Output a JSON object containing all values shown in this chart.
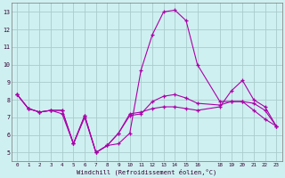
{
  "xlabel": "Windchill (Refroidissement éolien,°C)",
  "background_color": "#cff0f0",
  "grid_color": "#aacccc",
  "line_color": "#aa00aa",
  "xlim": [
    -0.5,
    23.5
  ],
  "ylim": [
    4.5,
    13.5
  ],
  "yticks": [
    5,
    6,
    7,
    8,
    9,
    10,
    11,
    12,
    13
  ],
  "xticks": [
    0,
    1,
    2,
    3,
    4,
    5,
    6,
    7,
    8,
    9,
    10,
    11,
    12,
    13,
    14,
    15,
    16,
    18,
    19,
    20,
    21,
    22,
    23
  ],
  "series1_x": [
    0,
    1,
    2,
    3,
    4,
    5,
    6,
    7,
    8,
    9,
    10,
    11,
    12,
    13,
    14,
    15,
    16,
    18,
    19,
    20,
    21,
    22,
    23
  ],
  "series1_y": [
    8.3,
    7.5,
    7.3,
    7.4,
    7.4,
    5.5,
    7.1,
    5.0,
    5.4,
    5.5,
    6.1,
    9.7,
    11.7,
    13.0,
    13.1,
    12.5,
    10.0,
    7.9,
    7.9,
    7.9,
    7.4,
    6.9,
    6.5
  ],
  "series2_x": [
    0,
    1,
    2,
    3,
    4,
    5,
    6,
    7,
    8,
    9,
    10,
    11,
    12,
    13,
    14,
    15,
    16,
    18,
    19,
    20,
    21,
    22,
    23
  ],
  "series2_y": [
    8.3,
    7.5,
    7.3,
    7.4,
    7.4,
    5.5,
    7.1,
    5.0,
    5.4,
    6.1,
    7.2,
    7.3,
    7.5,
    7.6,
    7.6,
    7.5,
    7.4,
    7.6,
    8.5,
    9.1,
    8.0,
    7.6,
    6.5
  ],
  "series3_x": [
    0,
    1,
    2,
    3,
    4,
    5,
    6,
    7,
    8,
    9,
    10,
    11,
    12,
    13,
    14,
    15,
    16,
    18,
    19,
    20,
    21,
    22,
    23
  ],
  "series3_y": [
    8.3,
    7.5,
    7.3,
    7.4,
    7.2,
    5.5,
    7.0,
    5.0,
    5.4,
    6.1,
    7.1,
    7.2,
    7.9,
    8.2,
    8.3,
    8.1,
    7.8,
    7.7,
    7.9,
    7.9,
    7.8,
    7.4,
    6.5
  ]
}
